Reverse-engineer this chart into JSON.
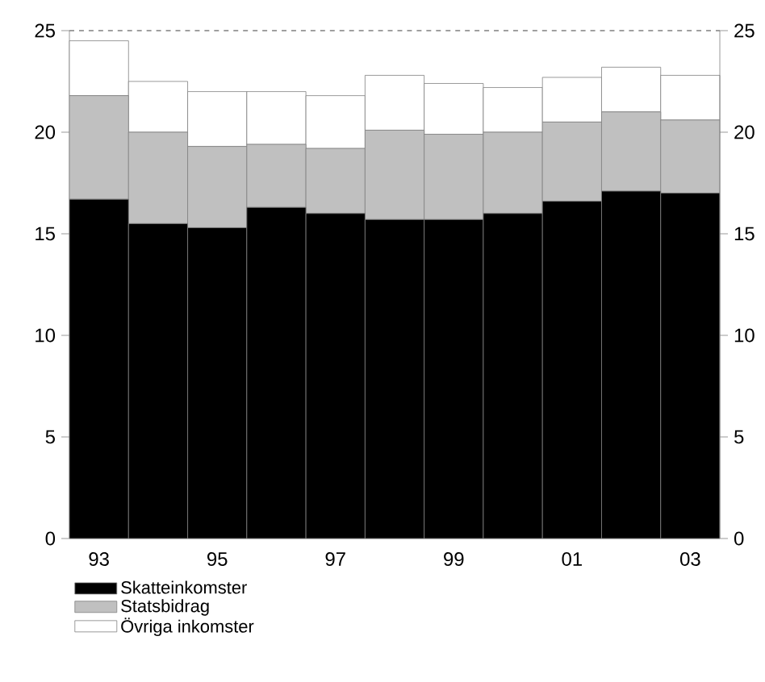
{
  "chart_data": {
    "type": "bar",
    "stacked": true,
    "categories": [
      "93",
      null,
      "95",
      null,
      "97",
      null,
      "99",
      null,
      "01",
      null,
      "03"
    ],
    "series": [
      {
        "name": "Skatteinkomster",
        "color": "#000000",
        "values": [
          16.7,
          15.5,
          15.3,
          16.3,
          16.0,
          15.7,
          15.7,
          16.0,
          16.6,
          17.1,
          17.0
        ]
      },
      {
        "name": "Statsbidrag",
        "color": "#c0c0c0",
        "values": [
          5.1,
          4.5,
          4.0,
          3.1,
          3.2,
          4.4,
          4.2,
          4.0,
          3.9,
          3.9,
          3.6
        ]
      },
      {
        "name": "Övriga inkomster",
        "color": "#ffffff",
        "values": [
          2.7,
          2.5,
          2.7,
          2.6,
          2.6,
          2.7,
          2.5,
          2.2,
          2.2,
          2.2,
          2.2
        ]
      }
    ],
    "ylim": [
      0,
      25
    ],
    "yticks": [
      0,
      5,
      10,
      15,
      20,
      25
    ],
    "y2lim": [
      0,
      25
    ],
    "y2ticks": [
      0,
      5,
      10,
      15,
      20,
      25
    ],
    "ref_lines": [
      {
        "axis": "y",
        "value": 25,
        "color": "#808080",
        "line_style": "dashed"
      }
    ],
    "legend": "bottom",
    "grid": false
  }
}
